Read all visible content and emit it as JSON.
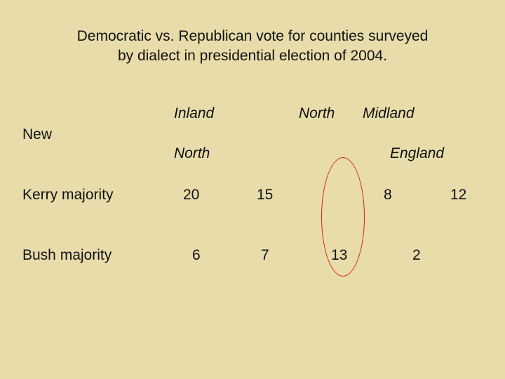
{
  "title": {
    "line1": "Democratic vs. Republican vote for counties surveyed",
    "line2": "by dialect in presidential election of 2004."
  },
  "headers": {
    "inland": "Inland",
    "north": "North",
    "midland": "Midland",
    "new": "New",
    "north2": "North",
    "england": "England"
  },
  "rows": {
    "kerry": {
      "label": "Kerry majority",
      "values": [
        "20",
        "15",
        "8",
        "12"
      ]
    },
    "bush": {
      "label": "Bush majority",
      "values": [
        "6",
        "7",
        "13",
        "2"
      ]
    }
  },
  "annotation_color": "#d62020"
}
